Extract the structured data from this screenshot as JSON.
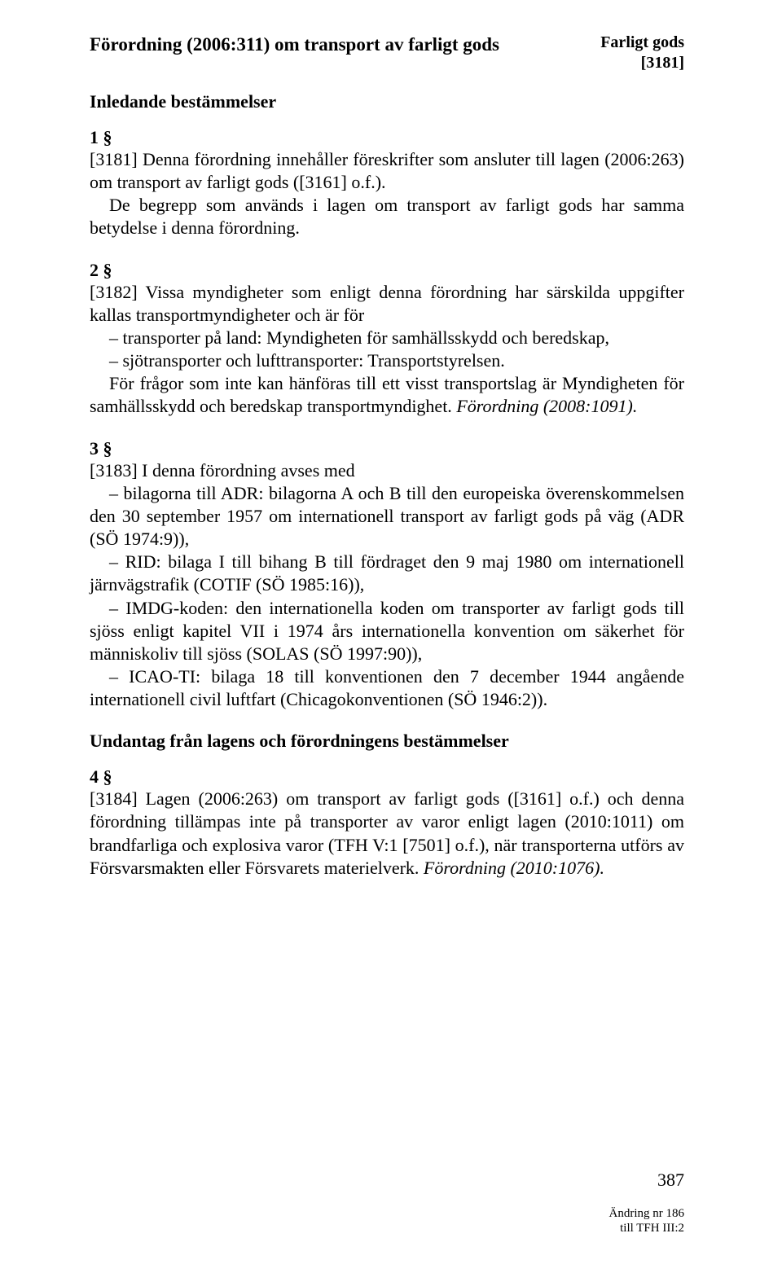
{
  "header": {
    "title": "Förordning (2006:311) om transport av farligt gods",
    "corner_line1": "Farligt gods",
    "corner_line2": "[3181]"
  },
  "section_intro": "Inledande bestämmelser",
  "s1": {
    "num": "1 §",
    "p1": "[3181] Denna förordning innehåller föreskrifter som ansluter till lagen (2006:263) om transport av farligt gods ([3161] o.f.).",
    "p2": "De begrepp som används i lagen om transport av farligt gods har samma betydelse i denna förordning."
  },
  "s2": {
    "num": "2 §",
    "lead": "[3182] Vissa myndigheter som enligt denna förordning har särskilda uppgifter kallas transportmyndigheter och är för",
    "item1": "– transporter på land: Myndigheten för samhällsskydd och beredskap,",
    "item2": "– sjötransporter och lufttransporter: Transportstyrelsen.",
    "p2": "För frågor som inte kan hänföras till ett visst transportslag är Myndigheten för samhällsskydd och beredskap transportmyndighet.",
    "p2_italic": "Förordning (2008:1091)."
  },
  "s3": {
    "num": "3 §",
    "lead": "[3183] I denna förordning avses med",
    "item1": "– bilagorna till ADR: bilagorna A och B till den europeiska överenskommelsen den 30 september 1957 om internationell transport av farligt gods på väg (ADR (SÖ 1974:9)),",
    "item2": "– RID: bilaga I till bihang B till fördraget den 9 maj 1980 om internationell järnvägstrafik (COTIF (SÖ 1985:16)),",
    "item3": "– IMDG-koden: den internationella koden om transporter av farligt gods till sjöss enligt kapitel VII i 1974 års internationella konvention om säkerhet för människoliv till sjöss (SOLAS (SÖ 1997:90)),",
    "item4": "– ICAO-TI: bilaga 18 till konventionen den 7 december 1944 angående internationell civil luftfart (Chicagokonventionen (SÖ 1946:2))."
  },
  "section_exempt": "Undantag från lagens och förordningens bestämmelser",
  "s4": {
    "num": "4 §",
    "p1a": "[3184] Lagen (2006:263) om transport av farligt gods ([3161] o.f.) och denna förordning tillämpas inte på transporter av varor enligt lagen (2010:1011) om brandfarliga och explosiva varor (TFH V:1 [7501] o.f.), när transporterna utförs av Försvarsmakten eller Försvarets materielverk. ",
    "p1_italic": "Förordning (2010:1076)."
  },
  "footer": {
    "page": "387",
    "note1": "Ändring nr 186",
    "note2": "till TFH III:2"
  }
}
